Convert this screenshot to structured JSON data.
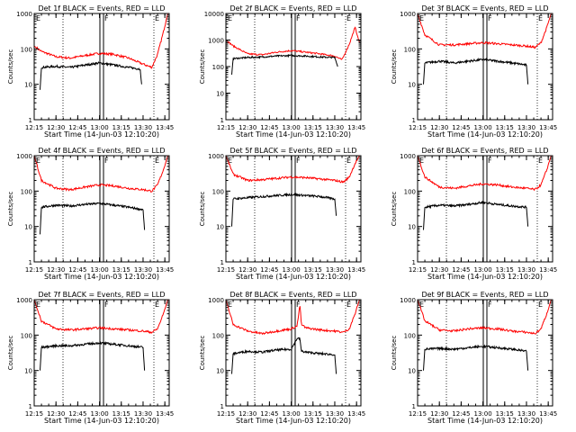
{
  "chart_data": [
    {
      "type": "line",
      "title": "Det 1f BLACK = Events, RED = LLD",
      "xlabel": "Start Time (14-Jun-03 12:10:20)",
      "ylabel": "Counts/sec",
      "yscale": "log",
      "ylim": [
        1,
        1000
      ],
      "xlim": [
        "12:15",
        "13:48"
      ],
      "x_tick_labels": [
        "12:15",
        "12:30",
        "12:45",
        "13:00",
        "13:15",
        "13:30",
        "13:45"
      ],
      "y_tick_labels": [
        "1",
        "10",
        "100",
        "1000"
      ],
      "markers": [
        "E",
        "F",
        "E"
      ],
      "series": [
        {
          "name": "LLD",
          "color": "#ff0000",
          "x": [
            "12:15",
            "12:20",
            "12:30",
            "12:40",
            "12:50",
            "13:00",
            "13:10",
            "13:20",
            "13:28",
            "13:36",
            "13:40",
            "13:44",
            "13:47"
          ],
          "values": [
            120,
            85,
            60,
            55,
            65,
            75,
            70,
            55,
            40,
            30,
            70,
            300,
            1000
          ]
        },
        {
          "name": "Events",
          "color": "#000000",
          "x": [
            "12:19",
            "12:20",
            "12:30",
            "12:40",
            "12:50",
            "13:00",
            "13:10",
            "13:20",
            "13:28",
            "13:29"
          ],
          "values": [
            7,
            30,
            32,
            30,
            35,
            40,
            35,
            30,
            27,
            10
          ]
        }
      ]
    },
    {
      "type": "line",
      "title": "Det 2f BLACK = Events, RED = LLD",
      "xlabel": "Start Time (14-Jun-03 12:10:20)",
      "ylabel": "Counts/sec",
      "yscale": "log",
      "ylim": [
        1,
        10000
      ],
      "xlim": [
        "12:15",
        "13:48"
      ],
      "x_tick_labels": [
        "12:15",
        "12:30",
        "12:45",
        "13:00",
        "13:15",
        "13:30",
        "13:45"
      ],
      "y_tick_labels": [
        "1",
        "10",
        "100",
        "1000",
        "10000"
      ],
      "markers": [
        "E",
        "F",
        "E"
      ],
      "series": [
        {
          "name": "LLD",
          "color": "#ff0000",
          "x": [
            "12:15",
            "12:20",
            "12:30",
            "12:40",
            "12:50",
            "13:00",
            "13:10",
            "13:20",
            "13:30",
            "13:35",
            "13:40",
            "13:44",
            "13:47"
          ],
          "values": [
            1000,
            600,
            300,
            280,
            350,
            400,
            350,
            300,
            250,
            180,
            700,
            3000,
            800
          ]
        },
        {
          "name": "Events",
          "color": "#000000",
          "x": [
            "12:19",
            "12:20",
            "12:30",
            "12:40",
            "12:50",
            "13:00",
            "13:10",
            "13:20",
            "13:30",
            "13:32"
          ],
          "values": [
            50,
            200,
            220,
            230,
            250,
            260,
            250,
            230,
            220,
            100
          ]
        }
      ]
    },
    {
      "type": "line",
      "title": "Det 3f BLACK = Events, RED = LLD",
      "xlabel": "Start Time (14-Jun-03 12:10:20)",
      "ylabel": "Counts/sec",
      "yscale": "log",
      "ylim": [
        1,
        1000
      ],
      "xlim": [
        "12:15",
        "13:48"
      ],
      "x_tick_labels": [
        "12:15",
        "12:30",
        "12:45",
        "13:00",
        "13:15",
        "13:30",
        "13:45"
      ],
      "y_tick_labels": [
        "1",
        "10",
        "100",
        "1000"
      ],
      "markers": [
        "E",
        "F",
        "E"
      ],
      "series": [
        {
          "name": "LLD",
          "color": "#ff0000",
          "x": [
            "12:15",
            "12:20",
            "12:30",
            "12:40",
            "12:50",
            "13:00",
            "13:10",
            "13:20",
            "13:30",
            "13:36",
            "13:40",
            "13:44",
            "13:47"
          ],
          "values": [
            1000,
            250,
            130,
            130,
            140,
            150,
            140,
            130,
            120,
            110,
            150,
            400,
            1000
          ]
        },
        {
          "name": "Events",
          "color": "#000000",
          "x": [
            "12:19",
            "12:20",
            "12:30",
            "12:40",
            "12:50",
            "13:00",
            "13:10",
            "13:20",
            "13:30",
            "13:31"
          ],
          "values": [
            10,
            40,
            45,
            40,
            45,
            50,
            45,
            40,
            35,
            10
          ]
        }
      ]
    },
    {
      "type": "line",
      "title": "Det 4f BLACK = Events, RED = LLD",
      "xlabel": "Start Time (14-Jun-03 12:10:20)",
      "ylabel": "Counts/sec",
      "yscale": "log",
      "ylim": [
        1,
        1000
      ],
      "xlim": [
        "12:15",
        "13:48"
      ],
      "x_tick_labels": [
        "12:15",
        "12:30",
        "12:45",
        "13:00",
        "13:15",
        "13:30",
        "13:45"
      ],
      "y_tick_labels": [
        "1",
        "10",
        "100",
        "1000"
      ],
      "markers": [
        "E",
        "F",
        "E"
      ],
      "series": [
        {
          "name": "LLD",
          "color": "#ff0000",
          "x": [
            "12:15",
            "12:20",
            "12:30",
            "12:40",
            "12:50",
            "13:00",
            "13:10",
            "13:20",
            "13:30",
            "13:36",
            "13:40",
            "13:44",
            "13:47"
          ],
          "values": [
            1000,
            200,
            120,
            110,
            130,
            150,
            140,
            120,
            110,
            100,
            150,
            400,
            1000
          ]
        },
        {
          "name": "Events",
          "color": "#000000",
          "x": [
            "12:19",
            "12:20",
            "12:30",
            "12:40",
            "12:50",
            "13:00",
            "13:10",
            "13:20",
            "13:30",
            "13:31"
          ],
          "values": [
            6,
            35,
            40,
            38,
            42,
            45,
            40,
            35,
            30,
            8
          ]
        }
      ]
    },
    {
      "type": "line",
      "title": "Det 5f BLACK = Events, RED = LLD",
      "xlabel": "Start Time (14-Jun-03 12:10:20)",
      "ylabel": "Counts/sec",
      "yscale": "log",
      "ylim": [
        1,
        1000
      ],
      "xlim": [
        "12:15",
        "13:48"
      ],
      "x_tick_labels": [
        "12:15",
        "12:30",
        "12:45",
        "13:00",
        "13:15",
        "13:30",
        "13:45"
      ],
      "y_tick_labels": [
        "1",
        "10",
        "100",
        "1000"
      ],
      "markers": [
        "E",
        "F",
        "E"
      ],
      "series": [
        {
          "name": "LLD",
          "color": "#ff0000",
          "x": [
            "12:15",
            "12:20",
            "12:30",
            "12:40",
            "12:50",
            "13:00",
            "13:10",
            "13:20",
            "13:30",
            "13:36",
            "13:40",
            "13:44",
            "13:47"
          ],
          "values": [
            1000,
            300,
            200,
            210,
            230,
            250,
            240,
            220,
            200,
            180,
            250,
            600,
            1000
          ]
        },
        {
          "name": "Events",
          "color": "#000000",
          "x": [
            "12:19",
            "12:20",
            "12:30",
            "12:40",
            "12:50",
            "13:00",
            "13:10",
            "13:20",
            "13:30",
            "13:31"
          ],
          "values": [
            10,
            60,
            65,
            70,
            75,
            80,
            75,
            70,
            60,
            20
          ]
        }
      ]
    },
    {
      "type": "line",
      "title": "Det 6f BLACK = Events, RED = LLD",
      "xlabel": "Start Time (14-Jun-03 12:10:20)",
      "ylabel": "Counts/sec",
      "yscale": "log",
      "ylim": [
        1,
        1000
      ],
      "xlim": [
        "12:15",
        "13:48"
      ],
      "x_tick_labels": [
        "12:15",
        "12:30",
        "12:45",
        "13:00",
        "13:15",
        "13:30",
        "13:45"
      ],
      "y_tick_labels": [
        "1",
        "10",
        "100",
        "1000"
      ],
      "markers": [
        "E",
        "F",
        "E"
      ],
      "series": [
        {
          "name": "LLD",
          "color": "#ff0000",
          "x": [
            "12:15",
            "12:20",
            "12:30",
            "12:40",
            "12:50",
            "13:00",
            "13:10",
            "13:20",
            "13:30",
            "13:36",
            "13:40",
            "13:44",
            "13:47"
          ],
          "values": [
            1000,
            250,
            130,
            120,
            140,
            160,
            150,
            130,
            120,
            110,
            150,
            400,
            1000
          ]
        },
        {
          "name": "Events",
          "color": "#000000",
          "x": [
            "12:19",
            "12:20",
            "12:30",
            "12:40",
            "12:50",
            "13:00",
            "13:10",
            "13:20",
            "13:30",
            "13:31"
          ],
          "values": [
            8,
            35,
            40,
            38,
            42,
            48,
            42,
            38,
            35,
            10
          ]
        }
      ]
    },
    {
      "type": "line",
      "title": "Det 7f BLACK = Events, RED = LLD",
      "xlabel": "Start Time (14-Jun-03 12:10:20)",
      "ylabel": "Counts/sec",
      "yscale": "log",
      "ylim": [
        1,
        1000
      ],
      "xlim": [
        "12:15",
        "13:48"
      ],
      "x_tick_labels": [
        "12:15",
        "12:30",
        "12:45",
        "13:00",
        "13:15",
        "13:30",
        "13:45"
      ],
      "y_tick_labels": [
        "1",
        "10",
        "100",
        "1000"
      ],
      "markers": [
        "E",
        "F",
        "E"
      ],
      "series": [
        {
          "name": "LLD",
          "color": "#ff0000",
          "x": [
            "12:15",
            "12:20",
            "12:30",
            "12:40",
            "12:50",
            "13:00",
            "13:10",
            "13:20",
            "13:30",
            "13:36",
            "13:40",
            "13:44",
            "13:47"
          ],
          "values": [
            1000,
            250,
            150,
            140,
            150,
            160,
            150,
            140,
            130,
            120,
            150,
            400,
            1000
          ]
        },
        {
          "name": "Events",
          "color": "#000000",
          "x": [
            "12:19",
            "12:20",
            "12:30",
            "12:40",
            "12:50",
            "13:00",
            "13:10",
            "13:20",
            "13:30",
            "13:31"
          ],
          "values": [
            10,
            45,
            50,
            50,
            55,
            60,
            55,
            50,
            45,
            10
          ]
        }
      ]
    },
    {
      "type": "line",
      "title": "Det 8f BLACK = Events, RED = LLD",
      "xlabel": "Start Time (14-Jun-03 12:10:20)",
      "ylabel": "Counts/sec",
      "yscale": "log",
      "ylim": [
        1,
        1000
      ],
      "xlim": [
        "12:15",
        "13:48"
      ],
      "x_tick_labels": [
        "12:15",
        "12:30",
        "12:45",
        "13:00",
        "13:15",
        "13:30",
        "13:45"
      ],
      "y_tick_labels": [
        "1",
        "10",
        "100",
        "1000"
      ],
      "markers": [
        "E",
        "F",
        "E"
      ],
      "series": [
        {
          "name": "LLD",
          "color": "#ff0000",
          "x": [
            "12:15",
            "12:20",
            "12:30",
            "12:40",
            "12:50",
            "13:00",
            "13:04",
            "13:06",
            "13:07",
            "13:10",
            "13:20",
            "13:30",
            "13:36",
            "13:40",
            "13:44",
            "13:47"
          ],
          "values": [
            1000,
            200,
            130,
            110,
            130,
            150,
            180,
            700,
            200,
            160,
            140,
            130,
            120,
            150,
            400,
            1000
          ]
        },
        {
          "name": "Events",
          "color": "#000000",
          "x": [
            "12:19",
            "12:20",
            "12:30",
            "12:40",
            "12:50",
            "13:00",
            "13:04",
            "13:06",
            "13:07",
            "13:10",
            "13:20",
            "13:30",
            "13:31"
          ],
          "values": [
            8,
            30,
            35,
            33,
            38,
            40,
            80,
            80,
            35,
            33,
            30,
            28,
            8
          ]
        }
      ]
    },
    {
      "type": "line",
      "title": "Det 9f BLACK = Events, RED = LLD",
      "xlabel": "Start Time (14-Jun-03 12:10:20)",
      "ylabel": "Counts/sec",
      "yscale": "log",
      "ylim": [
        1,
        1000
      ],
      "xlim": [
        "12:15",
        "13:48"
      ],
      "x_tick_labels": [
        "12:15",
        "12:30",
        "12:45",
        "13:00",
        "13:15",
        "13:30",
        "13:45"
      ],
      "y_tick_labels": [
        "1",
        "10",
        "100",
        "1000"
      ],
      "markers": [
        "E",
        "F",
        "E"
      ],
      "series": [
        {
          "name": "LLD",
          "color": "#ff0000",
          "x": [
            "12:15",
            "12:20",
            "12:30",
            "12:40",
            "12:50",
            "13:00",
            "13:10",
            "13:20",
            "13:30",
            "13:36",
            "13:40",
            "13:44",
            "13:47"
          ],
          "values": [
            1000,
            250,
            140,
            130,
            150,
            160,
            150,
            130,
            120,
            110,
            150,
            400,
            1000
          ]
        },
        {
          "name": "Events",
          "color": "#000000",
          "x": [
            "12:19",
            "12:20",
            "12:30",
            "12:40",
            "12:50",
            "13:00",
            "13:10",
            "13:20",
            "13:30",
            "13:31"
          ],
          "values": [
            10,
            40,
            42,
            40,
            44,
            48,
            44,
            40,
            35,
            10
          ]
        }
      ]
    }
  ]
}
